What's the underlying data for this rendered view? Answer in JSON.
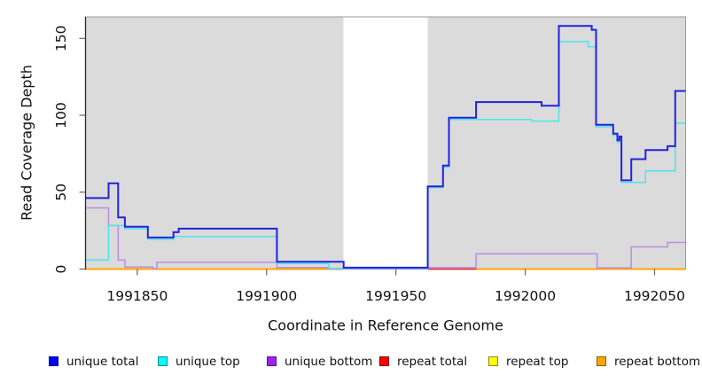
{
  "legend": {
    "items": [
      {
        "label": "unique total",
        "color": "#0000ff"
      },
      {
        "label": "unique top",
        "color": "#00ffff"
      },
      {
        "label": "unique bottom",
        "color": "#a020f0"
      },
      {
        "label": "repeat total",
        "color": "#ff0000"
      },
      {
        "label": "repeat top",
        "color": "#ffff00"
      },
      {
        "label": "repeat bottom",
        "color": "#ffa500"
      }
    ]
  },
  "chart_data": {
    "type": "line",
    "subtype": "step-coverage",
    "title": "",
    "xlabel": "Coordinate in Reference Genome",
    "ylabel": "Read Coverage Depth",
    "xlim": [
      1991830,
      1992062
    ],
    "ylim": [
      0,
      164
    ],
    "xticks": [
      1991850,
      1991900,
      1991950,
      1992000,
      1992050
    ],
    "yticks": [
      0,
      50,
      100,
      150
    ],
    "grid": false,
    "legend_position": "bottom",
    "background": "#dbdbdb",
    "border_color": "#9a9a9a",
    "spine_color": "#262626",
    "tick_color": "#666666",
    "masked_region": {
      "x0": 1991929.7,
      "x1": 1991962.3,
      "color": "#ffffff"
    },
    "series": [
      {
        "name": "repeat top",
        "color": "#ffff00",
        "width": 1.4,
        "segments": [
          [
            [
              1991830,
              0
            ],
            [
              1991929.7,
              0
            ]
          ],
          [
            [
              1991962.3,
              0
            ],
            [
              1992062,
              0
            ]
          ]
        ]
      },
      {
        "name": "repeat total",
        "color": "#dd2244",
        "width": 1.6,
        "segments": [
          [
            [
              1991830,
              0
            ],
            [
              1991929.7,
              0
            ]
          ],
          [
            [
              1991962.3,
              0
            ],
            [
              1992062,
              0
            ]
          ]
        ]
      },
      {
        "name": "repeat bottom",
        "color": "#ffa500",
        "width": 2,
        "segments": [
          [
            [
              1991830,
              0
            ],
            [
              1991929.7,
              0
            ]
          ],
          [
            [
              1991981,
              0
            ],
            [
              1992062,
              0
            ]
          ]
        ]
      },
      {
        "name": "unique bottom",
        "color": "#bd8ce2",
        "width": 1.5,
        "segments": [
          [
            [
              1991830,
              39.8
            ],
            [
              1991838.9,
              28.3
            ],
            [
              1991842.6,
              5.8
            ],
            [
              1991845.2,
              1.3
            ],
            [
              1991856,
              0.3
            ],
            [
              1991857.6,
              4.4
            ],
            [
              1991904,
              1.0
            ],
            [
              1991924,
              0.2
            ],
            [
              1991962.3,
              0.9
            ],
            [
              1991981,
              10
            ],
            [
              1992027.8,
              0.8
            ],
            [
              1992041,
              14.4
            ],
            [
              1992055,
              17.3
            ],
            [
              1992062,
              17.3
            ]
          ]
        ]
      },
      {
        "name": "unique top",
        "color": "#4de3ee",
        "width": 1.5,
        "segments": [
          [
            [
              1991830,
              5.8
            ],
            [
              1991838.9,
              28.3
            ],
            [
              1991845.2,
              26.2
            ],
            [
              1991854.1,
              19.2
            ],
            [
              1991864,
              21.2
            ],
            [
              1991904,
              3.6
            ],
            [
              1991924,
              0.4
            ],
            [
              1991962.3,
              53
            ],
            [
              1991968.2,
              66.2
            ],
            [
              1991970.5,
              97.3
            ],
            [
              1992002.5,
              96.2
            ],
            [
              1992013,
              147.9
            ],
            [
              1992024.3,
              144.6
            ],
            [
              1992027.4,
              92.5
            ],
            [
              1992034,
              87
            ],
            [
              1992035.6,
              82.3
            ],
            [
              1992036.4,
              84.9
            ],
            [
              1992037.2,
              56.4
            ],
            [
              1992046.5,
              63.8
            ],
            [
              1992058,
              94.8
            ],
            [
              1992062,
              94.8
            ]
          ]
        ]
      },
      {
        "name": "unique total",
        "color": "#2222dd",
        "width": 2,
        "segments": [
          [
            [
              1991830,
              46.2
            ],
            [
              1991838.9,
              55.8
            ],
            [
              1991842.6,
              33.6
            ],
            [
              1991845.2,
              27.5
            ],
            [
              1991854.1,
              20.5
            ],
            [
              1991864,
              24
            ],
            [
              1991866,
              26.3
            ],
            [
              1991904,
              4.8
            ],
            [
              1991929.8,
              0.9
            ],
            [
              1991962.3,
              53.8
            ],
            [
              1991968.2,
              67.3
            ],
            [
              1991970.5,
              98.4
            ],
            [
              1991981,
              108.6
            ],
            [
              1992006.3,
              106.2
            ],
            [
              1992013,
              158.1
            ],
            [
              1992025.7,
              155.6
            ],
            [
              1992027.4,
              93.8
            ],
            [
              1992034,
              88.1
            ],
            [
              1992035.6,
              83.7
            ],
            [
              1992036.4,
              86.2
            ],
            [
              1992037.2,
              57.7
            ],
            [
              1992041,
              71.5
            ],
            [
              1992046.5,
              77.4
            ],
            [
              1992055,
              79.9
            ],
            [
              1992058,
              115.8
            ],
            [
              1992062,
              115.8
            ]
          ]
        ]
      }
    ]
  }
}
